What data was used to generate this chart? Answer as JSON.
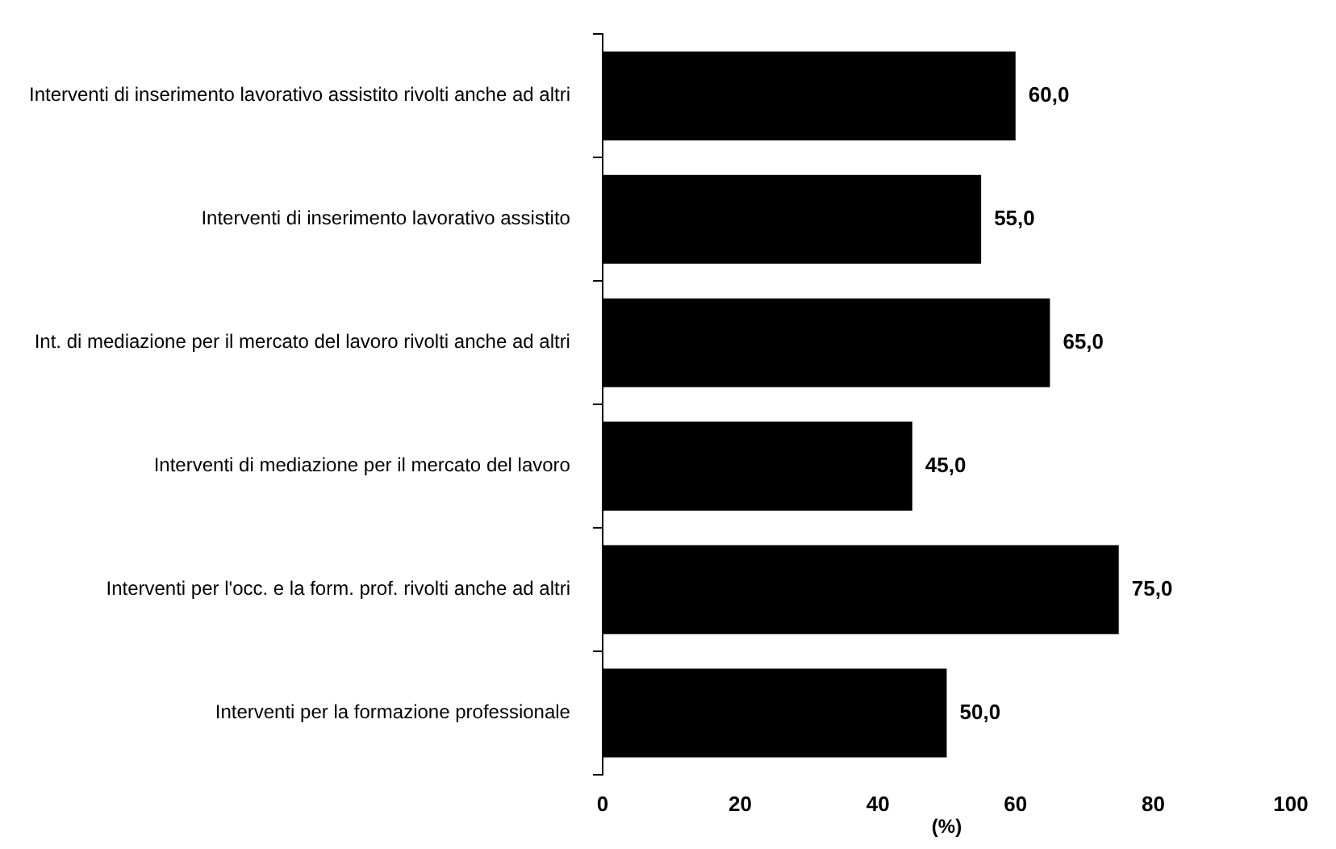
{
  "chart_data": {
    "type": "bar",
    "orientation": "horizontal",
    "xlabel": "(%)",
    "categories": [
      "Interventi di inserimento lavorativo assistito rivolti anche ad altri",
      "Interventi di inserimento lavorativo assistito",
      "Int. di mediazione per il mercato del lavoro rivolti anche ad altri",
      "Interventi di mediazione per il mercato del lavoro",
      "Interventi per l'occ. e la form. prof. rivolti anche ad altri",
      "Interventi per la formazione professionale"
    ],
    "values": [
      60,
      55,
      65,
      45,
      75,
      50
    ],
    "value_labels": [
      "60,0",
      "55,0",
      "65,0",
      "45,0",
      "75,0",
      "50,0"
    ],
    "color": "#000000",
    "xlim": [
      0,
      100
    ],
    "xticks": [
      0,
      20,
      40,
      60,
      80,
      100
    ],
    "grid": false,
    "legend": false
  }
}
